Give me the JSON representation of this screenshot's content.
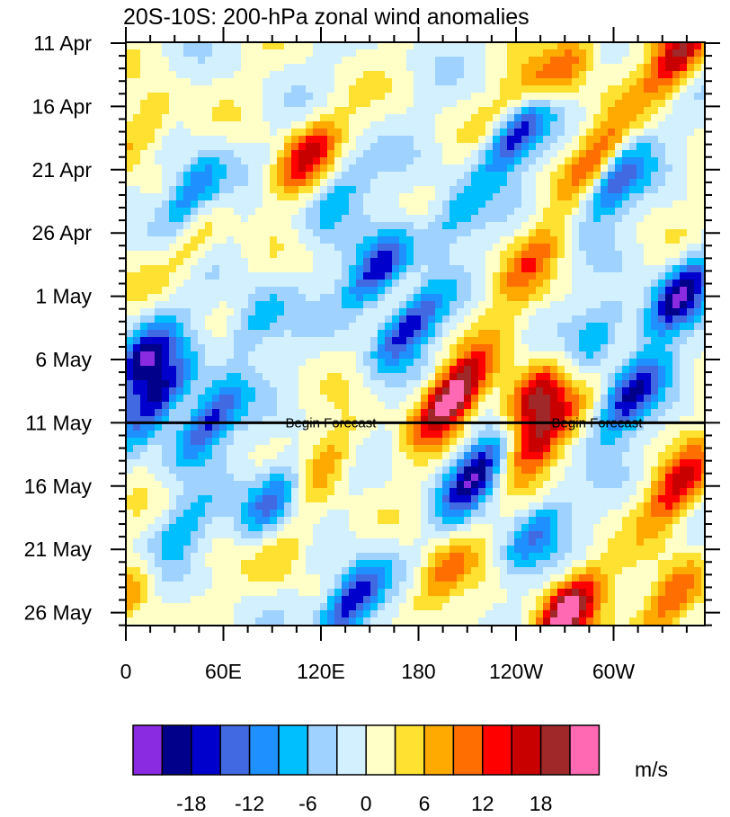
{
  "chart_data": {
    "type": "heatmap",
    "title": "20S-10S: 200-hPa zonal wind anomalies",
    "xlabel": "",
    "ylabel": "",
    "x_ticks": [
      "0",
      "60E",
      "120E",
      "180",
      "120W",
      "60W"
    ],
    "x_range_degE": [
      0,
      360
    ],
    "y_ticks": [
      "11 Apr",
      "16 Apr",
      "21 Apr",
      "26 Apr",
      "1 May",
      "6 May",
      "11 May",
      "16 May",
      "21 May",
      "26 May"
    ],
    "y_range": [
      "11 Apr",
      "26 May"
    ],
    "forecast_start": "11 May",
    "annotations": [
      "Begin Forecast",
      "Begin Forecast"
    ],
    "colorbar": {
      "units": "m/s",
      "tick_labels": [
        "-18",
        "-12",
        "-6",
        "0",
        "6",
        "12",
        "18"
      ],
      "levels": [
        -21,
        -18,
        -15,
        -12,
        -9,
        -6,
        -3,
        0,
        3,
        6,
        9,
        12,
        15,
        18,
        21
      ],
      "colors": [
        "#8a2be2",
        "#00008b",
        "#0000cd",
        "#4169e1",
        "#1e90ff",
        "#00bfff",
        "#a0d2ff",
        "#d2f0ff",
        "#ffffc8",
        "#ffe132",
        "#ffaa00",
        "#ff6e00",
        "#ff0000",
        "#c80000",
        "#a02828",
        "#ff69b4"
      ]
    },
    "anomaly_features": [
      {
        "lon": 110,
        "date": "20 Apr",
        "value": 15
      },
      {
        "lon": 10,
        "date": "18 Apr",
        "value": 9
      },
      {
        "lon": 40,
        "date": "27 Apr",
        "value": 6
      },
      {
        "lon": 240,
        "date": "16 Apr",
        "value": 9
      },
      {
        "lon": 340,
        "date": "12 Apr",
        "value": 18
      },
      {
        "lon": 270,
        "date": "13 Apr",
        "value": 12
      },
      {
        "lon": 290,
        "date": "20 Apr",
        "value": 12
      },
      {
        "lon": 250,
        "date": "28 Apr",
        "value": 9
      },
      {
        "lon": 200,
        "date": "9 May",
        "value": 24
      },
      {
        "lon": 250,
        "date": "9 May",
        "value": 18
      },
      {
        "lon": 255,
        "date": "12 May",
        "value": 18
      },
      {
        "lon": 125,
        "date": "14 May",
        "value": 9
      },
      {
        "lon": 340,
        "date": "16 May",
        "value": 15
      },
      {
        "lon": 335,
        "date": "25 May",
        "value": 15
      },
      {
        "lon": 270,
        "date": "26 May",
        "value": 24
      },
      {
        "lon": 195,
        "date": "23 May",
        "value": 12
      },
      {
        "lon": 5,
        "date": "24 May",
        "value": 9
      },
      {
        "lon": 100,
        "date": "21 May",
        "value": 6
      },
      {
        "lon": 180,
        "date": "1 May",
        "value": 6
      },
      {
        "lon": 230,
        "date": "3 May",
        "value": 3
      },
      {
        "lon": 240,
        "date": "18 Apr",
        "value": -21
      },
      {
        "lon": 300,
        "date": "22 Apr",
        "value": -15
      },
      {
        "lon": 175,
        "date": "3 May",
        "value": -21
      },
      {
        "lon": 155,
        "date": "29 Apr",
        "value": -18
      },
      {
        "lon": 140,
        "date": "25 May",
        "value": -21
      },
      {
        "lon": 215,
        "date": "15 May",
        "value": -21
      },
      {
        "lon": 340,
        "date": "1 May",
        "value": -21
      },
      {
        "lon": 310,
        "date": "9 May",
        "value": -18
      },
      {
        "lon": 10,
        "date": "6 May",
        "value": -18
      },
      {
        "lon": 20,
        "date": "9 May",
        "value": -18
      },
      {
        "lon": 50,
        "date": "11 May",
        "value": -18
      },
      {
        "lon": 90,
        "date": "17 May",
        "value": -15
      },
      {
        "lon": 40,
        "date": "23 Apr",
        "value": -15
      },
      {
        "lon": 200,
        "date": "25 Apr",
        "value": -9
      },
      {
        "lon": 290,
        "date": "4 May",
        "value": -9
      },
      {
        "lon": 250,
        "date": "20 May",
        "value": -12
      },
      {
        "lon": 30,
        "date": "20 May",
        "value": -9
      },
      {
        "lon": 80,
        "date": "3 May",
        "value": -9
      },
      {
        "lon": 130,
        "date": "23 Apr",
        "value": -9
      }
    ]
  }
}
